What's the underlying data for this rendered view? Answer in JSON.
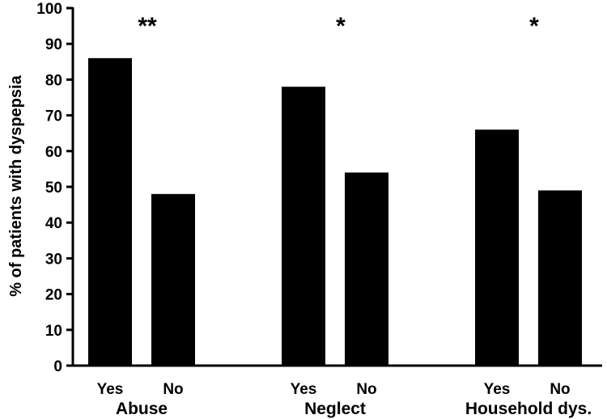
{
  "chart_data": {
    "type": "bar",
    "ylabel": "% of patients with dyspepsia",
    "ylim": [
      0,
      100
    ],
    "yticks": [
      0,
      10,
      20,
      30,
      40,
      50,
      60,
      70,
      80,
      90,
      100
    ],
    "groups": [
      {
        "name": "Abuse",
        "significance": "**",
        "bars": [
          {
            "label": "Yes",
            "value": 86
          },
          {
            "label": "No",
            "value": 48
          }
        ]
      },
      {
        "name": "Neglect",
        "significance": "*",
        "bars": [
          {
            "label": "Yes",
            "value": 78
          },
          {
            "label": "No",
            "value": 54
          }
        ]
      },
      {
        "name": "Household dys.",
        "significance": "*",
        "bars": [
          {
            "label": "Yes",
            "value": 66
          },
          {
            "label": "No",
            "value": 49
          }
        ]
      }
    ],
    "bar_color": "#000000"
  }
}
